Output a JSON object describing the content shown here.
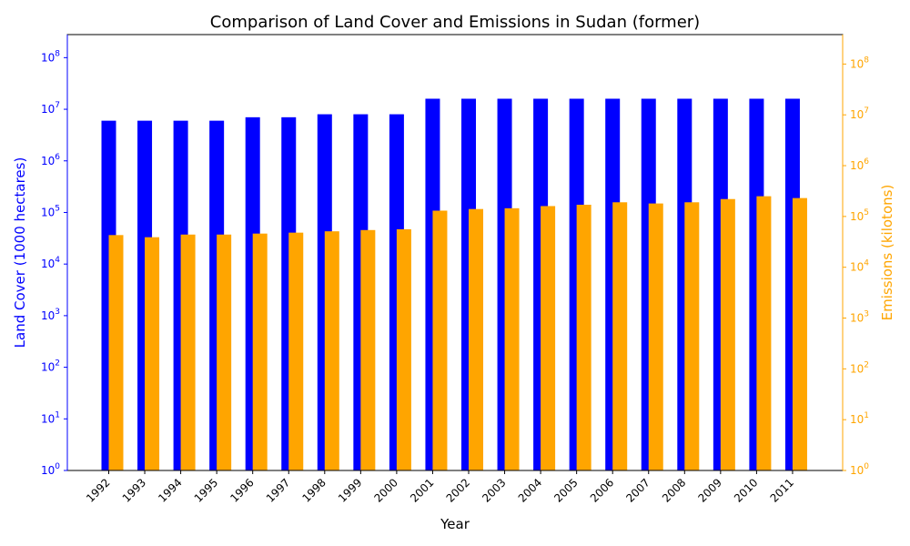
{
  "chart_data": {
    "type": "bar",
    "title": "Comparison of Land Cover and Emissions in Sudan (former)",
    "xlabel": "Year",
    "categories": [
      "1992",
      "1993",
      "1994",
      "1995",
      "1996",
      "1997",
      "1998",
      "1999",
      "2000",
      "2001",
      "2002",
      "2003",
      "2004",
      "2005",
      "2006",
      "2007",
      "2008",
      "2009",
      "2010",
      "2011"
    ],
    "y_scale": "log",
    "grid": false,
    "left_axis": {
      "label": "Land Cover (1000 hectares)",
      "color": "#0000ff",
      "ylim": [
        1,
        280000000
      ],
      "tick_exponents": [
        0,
        1,
        2,
        3,
        4,
        5,
        6,
        7,
        8
      ]
    },
    "right_axis": {
      "label": "Emissions (kilotons)",
      "color": "#ffa500",
      "ylim": [
        1,
        380000000
      ],
      "tick_exponents": [
        0,
        1,
        2,
        3,
        4,
        5,
        6,
        7,
        8
      ]
    },
    "series": [
      {
        "axis": "left",
        "color": "#0000ff",
        "values": [
          6000000,
          6000000,
          6000000,
          6000000,
          7000000,
          7000000,
          8000000,
          8000000,
          8000000,
          16000000,
          16000000,
          16000000,
          16000000,
          16000000,
          16000000,
          16000000,
          16000000,
          16000000,
          16000000,
          16000000
        ]
      },
      {
        "axis": "right",
        "color": "#ffa500",
        "values": [
          43000,
          39000,
          44000,
          44000,
          46000,
          48000,
          51000,
          54000,
          56000,
          130000,
          140000,
          145000,
          160000,
          170000,
          190000,
          180000,
          190000,
          220000,
          250000,
          230000
        ]
      }
    ]
  }
}
